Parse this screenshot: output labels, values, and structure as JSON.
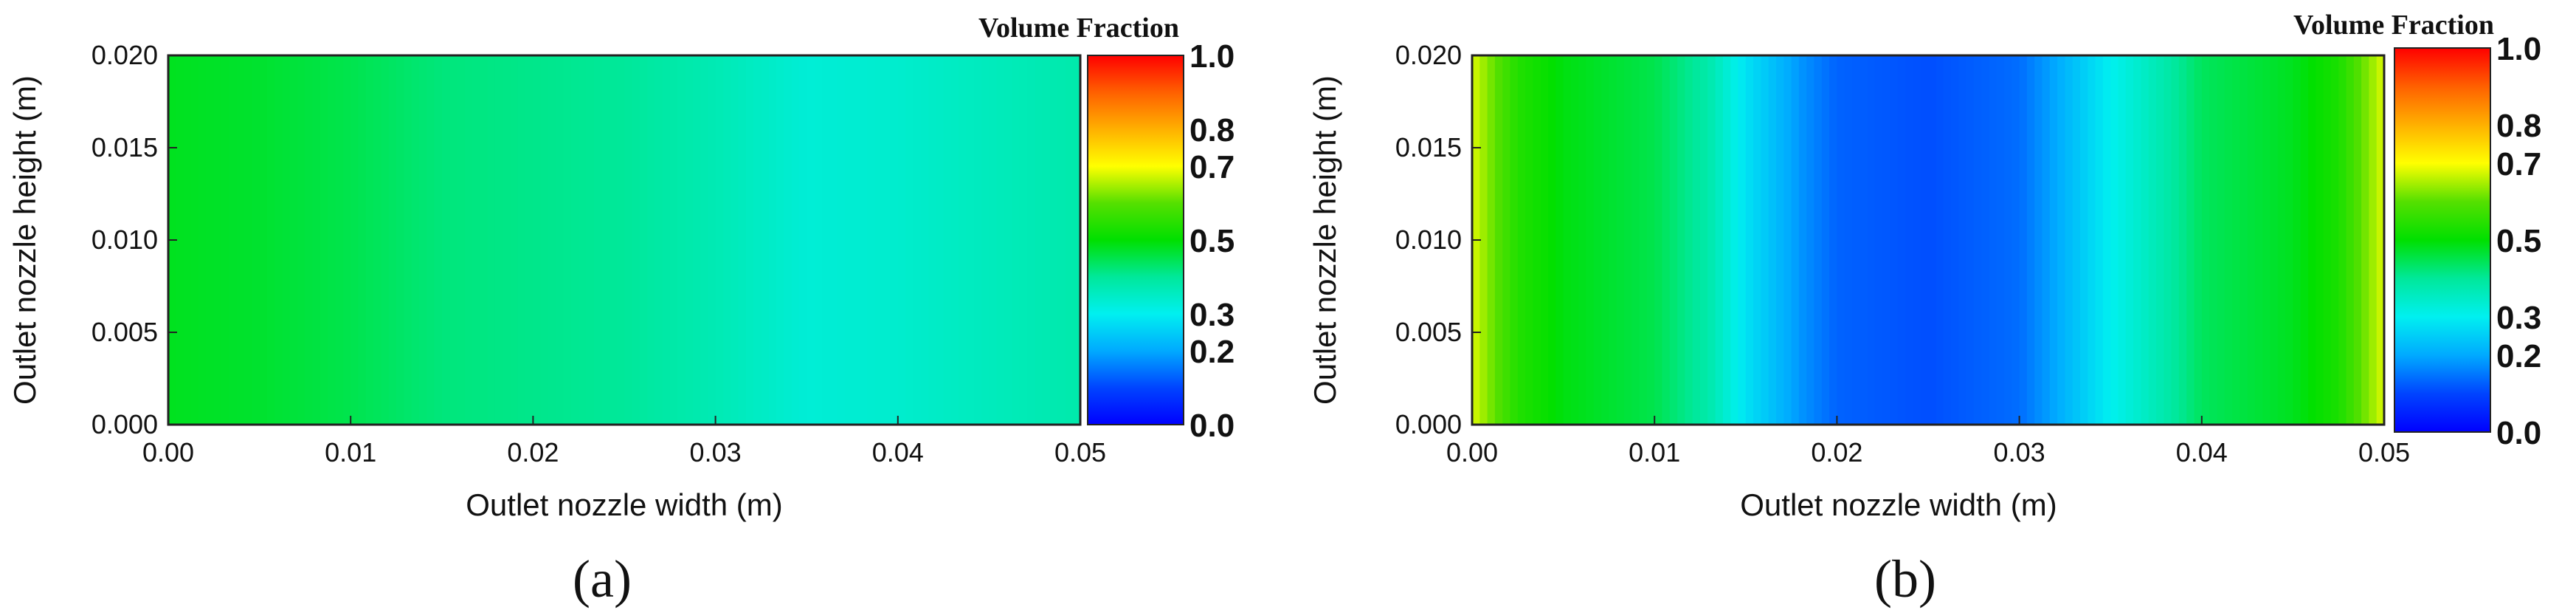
{
  "chart_data": [
    {
      "type": "heatmap",
      "panel_label": "(a)",
      "title": "",
      "xlabel": "Outlet nozzle width (m)",
      "ylabel": "Outlet nozzle height (m)",
      "xlim": [
        0.0,
        0.05
      ],
      "ylim": [
        0.0,
        0.02
      ],
      "xticks": [
        "0.00",
        "0.01",
        "0.02",
        "0.03",
        "0.04",
        "0.05"
      ],
      "yticks": [
        "0.000",
        "0.005",
        "0.010",
        "0.015",
        "0.020"
      ],
      "colorbar": {
        "title": "Volume Fraction",
        "ticks": [
          "1.0",
          "0.8",
          "0.7",
          "0.5",
          "0.3",
          "0.2",
          "0.0"
        ],
        "range": [
          0.0,
          1.0
        ]
      },
      "profile": {
        "x": [
          0.0,
          0.005,
          0.01,
          0.015,
          0.02,
          0.025,
          0.03,
          0.035,
          0.04,
          0.045,
          0.05
        ],
        "volume_fraction": [
          0.48,
          0.47,
          0.45,
          0.42,
          0.41,
          0.4,
          0.37,
          0.33,
          0.34,
          0.36,
          0.38
        ]
      }
    },
    {
      "type": "heatmap",
      "panel_label": "(b)",
      "title": "",
      "xlabel": "Outlet nozzle width (m)",
      "ylabel": "Outlet nozzle height (m)",
      "xlim": [
        0.0,
        0.05
      ],
      "ylim": [
        0.0,
        0.02
      ],
      "xticks": [
        "0.00",
        "0.01",
        "0.02",
        "0.03",
        "0.04",
        "0.05"
      ],
      "yticks": [
        "0.000",
        "0.005",
        "0.010",
        "0.015",
        "0.020"
      ],
      "colorbar": {
        "title": "Volume Fraction",
        "ticks": [
          "1.0",
          "0.8",
          "0.7",
          "0.5",
          "0.3",
          "0.2",
          "0.0"
        ],
        "range": [
          0.0,
          1.0
        ]
      },
      "profile": {
        "x": [
          0.0,
          0.001,
          0.0025,
          0.005,
          0.01,
          0.013,
          0.015,
          0.018,
          0.02,
          0.025,
          0.03,
          0.032,
          0.035,
          0.038,
          0.04,
          0.045,
          0.0475,
          0.049,
          0.05
        ],
        "volume_fraction": [
          0.68,
          0.62,
          0.54,
          0.49,
          0.45,
          0.38,
          0.28,
          0.18,
          0.13,
          0.11,
          0.14,
          0.2,
          0.3,
          0.38,
          0.44,
          0.48,
          0.53,
          0.62,
          0.68
        ]
      }
    }
  ]
}
